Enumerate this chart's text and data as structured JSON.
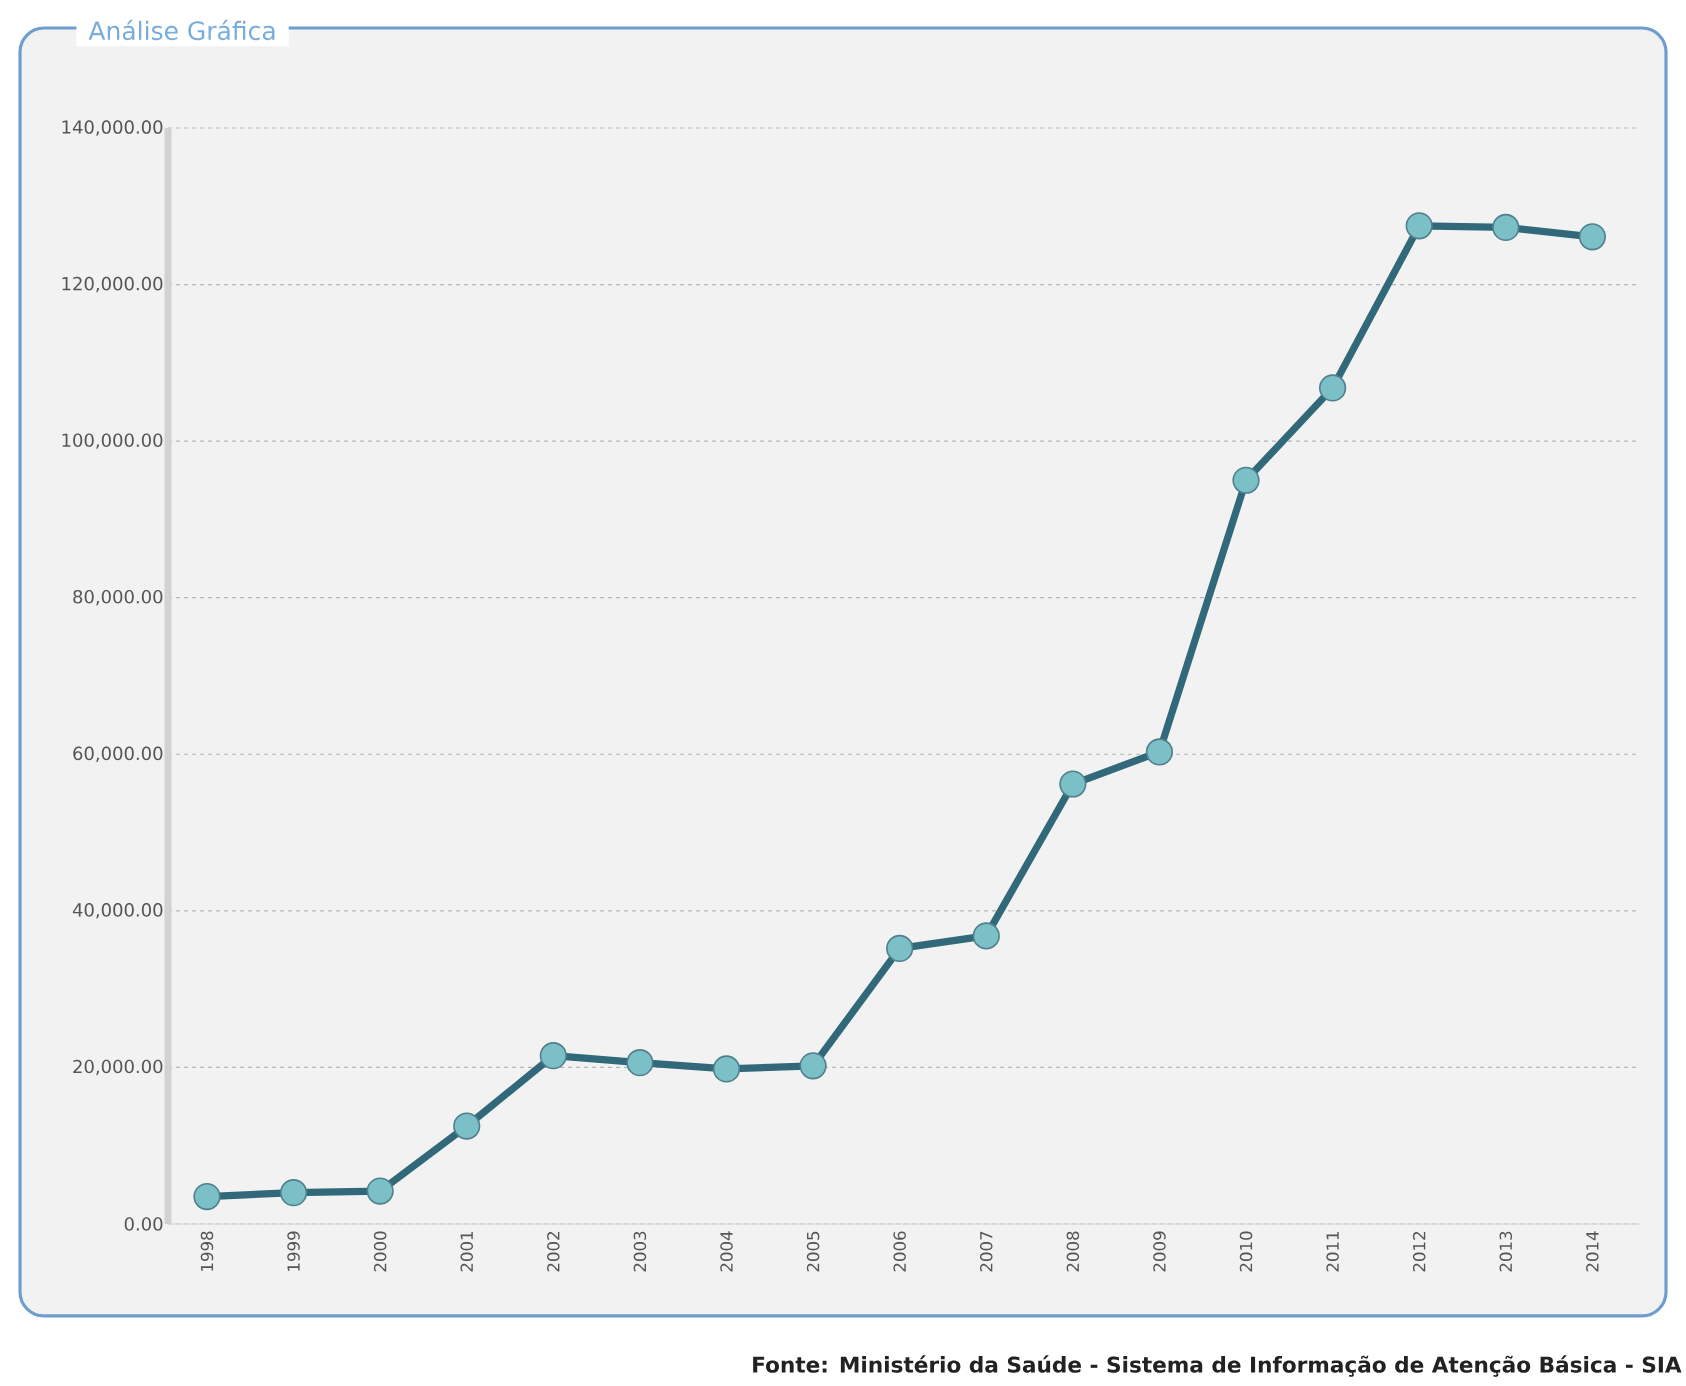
{
  "chart_data": {
    "type": "line",
    "title": "Análise Gráfica",
    "categories": [
      "1998",
      "1999",
      "2000",
      "2001",
      "2002",
      "2003",
      "2004",
      "2005",
      "2006",
      "2007",
      "2008",
      "2009",
      "2010",
      "2011",
      "2012",
      "2013",
      "2014"
    ],
    "values": [
      3500,
      4000,
      4200,
      12500,
      21500,
      20600,
      19800,
      20200,
      35200,
      36800,
      56200,
      60300,
      95000,
      106800,
      127500,
      127300,
      126100
    ],
    "color": "#31687a",
    "ylim": [
      0,
      140000
    ],
    "yticks": [
      {
        "value": 0,
        "label": "0.00"
      },
      {
        "value": 20000,
        "label": "20,000.00"
      },
      {
        "value": 40000,
        "label": "40,000.00"
      },
      {
        "value": 60000,
        "label": "60,000.00"
      },
      {
        "value": 80000,
        "label": "80,000.00"
      },
      {
        "value": 100000,
        "label": "100,000.00"
      },
      {
        "value": 120000,
        "label": "120,000.00"
      },
      {
        "value": 140000,
        "label": "140,000.00"
      }
    ],
    "grid": "y",
    "marker": "circle",
    "line_style": "solid",
    "annotations": [
      "Fonte:  Ministério da Saúde - Sistema de Informação de Atenção Básica - SIA"
    ]
  }
}
